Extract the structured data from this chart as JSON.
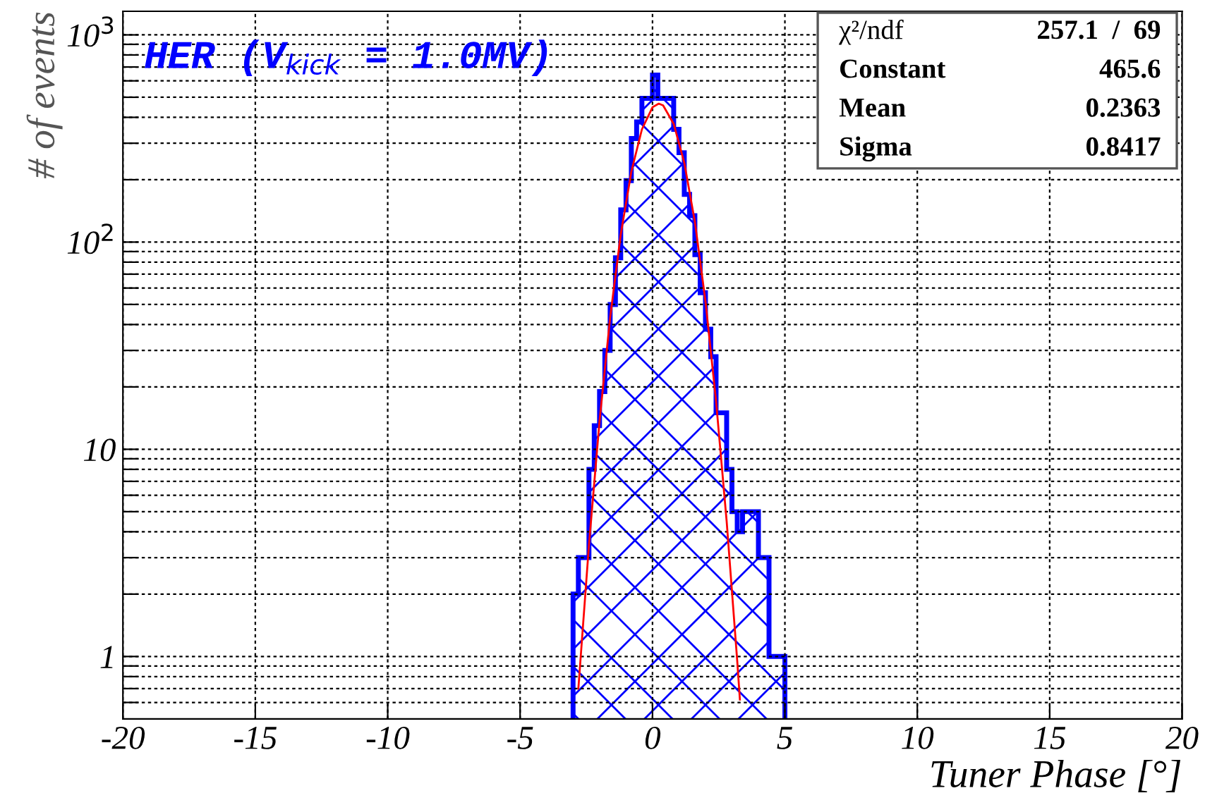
{
  "chart_data": {
    "type": "histogram",
    "xlabel": "Tuner Phase [°]",
    "ylabel": "# of events",
    "xlim": [
      -20,
      20
    ],
    "xticks": [
      -20,
      -15,
      -10,
      -5,
      0,
      5,
      10,
      15,
      20
    ],
    "ylim": [
      0.5,
      1300
    ],
    "log": "y",
    "yticks": [
      {
        "value": 0.6,
        "label": null
      },
      {
        "value": 0.7,
        "label": null
      },
      {
        "value": 0.8,
        "label": null
      },
      {
        "value": 0.9,
        "label": null
      },
      1,
      {
        "value": 2,
        "label": null
      },
      {
        "value": 3,
        "label": null
      },
      {
        "value": 4,
        "label": null
      },
      {
        "value": 5,
        "label": null
      },
      {
        "value": 6,
        "label": null
      },
      {
        "value": 7,
        "label": null
      },
      {
        "value": 8,
        "label": null
      },
      {
        "value": 9,
        "label": null
      },
      10,
      {
        "value": 20,
        "label": null
      },
      {
        "value": 30,
        "label": null
      },
      {
        "value": 40,
        "label": null
      },
      {
        "value": 50,
        "label": null
      },
      {
        "value": 60,
        "label": null
      },
      {
        "value": 70,
        "label": null
      },
      {
        "value": 80,
        "label": null
      },
      {
        "value": 90,
        "label": null
      },
      {
        "value": 100,
        "label": "10$^{2}$"
      },
      {
        "value": 200,
        "label": null
      },
      {
        "value": 300,
        "label": null
      },
      {
        "value": 400,
        "label": null
      },
      {
        "value": 500,
        "label": null
      },
      {
        "value": 600,
        "label": null
      },
      {
        "value": 700,
        "label": null
      },
      {
        "value": 800,
        "label": null
      },
      {
        "value": 900,
        "label": null
      },
      {
        "value": 1000,
        "label": "10$^{3}$"
      }
    ],
    "grid": true,
    "series": [
      {
        "color": "#0000ff",
        "bins": [
          -3.0,
          -2.8,
          -2.6,
          -2.4,
          -2.2,
          -2.0,
          -1.8,
          -1.6,
          -1.4,
          -1.2,
          -1.0,
          -0.8,
          -0.6,
          -0.4,
          -0.2,
          0.0,
          0.2,
          0.4,
          0.6,
          0.8,
          1.0,
          1.2,
          1.4,
          1.6,
          1.8,
          2.0,
          2.2,
          2.4,
          2.6,
          2.8,
          3.0,
          3.2,
          3.4,
          3.6,
          3.8,
          4.0,
          4.2,
          4.4,
          4.6,
          4.8,
          5.0
        ],
        "values": [
          2,
          3,
          3,
          8,
          13,
          19,
          30,
          50,
          84,
          143,
          198,
          316,
          380,
          494,
          494,
          640,
          494,
          494,
          494,
          350,
          270,
          170,
          134,
          87,
          57,
          38,
          28,
          15,
          15,
          8,
          5,
          4,
          5,
          5,
          5,
          3,
          3,
          1,
          1,
          1
        ]
      },
      {
        "type": "line",
        "color": "#ff0000",
        "x": [
          -2.8,
          -2.4,
          -2.0,
          -1.6,
          -1.2,
          -0.8,
          -0.4,
          0.0,
          0.2363,
          0.4,
          0.8,
          1.2,
          1.6,
          2.0,
          2.4,
          2.8,
          3.2,
          3.3
        ],
        "values": [
          0.7,
          3.45,
          13.7,
          43.2,
          108.7,
          218.3,
          350,
          447.6,
          465.6,
          456.9,
          372,
          241.7,
          125.3,
          51.8,
          17.1,
          4.5,
          0.95,
          0.62
        ]
      }
    ],
    "annotations": [
      "HER (V$_{kick}$ = 1.0MV)",
      "χ²/ndf",
      "257.1  /  69",
      "Constant",
      "465.6",
      "Mean",
      "0.2363",
      "Sigma",
      "0.8417"
    ]
  }
}
